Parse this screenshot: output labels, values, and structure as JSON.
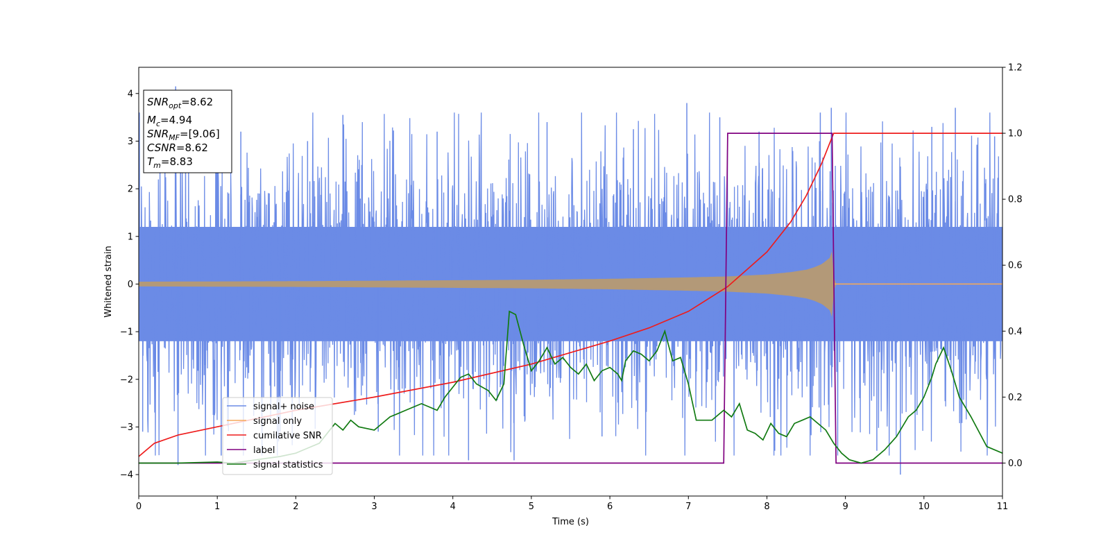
{
  "chart_data": {
    "type": "line",
    "title": "",
    "xlabel": "Time (s)",
    "ylabel": "Whitened strain",
    "xlim": [
      0,
      11
    ],
    "ylim": [
      -4.45,
      4.55
    ],
    "y2lim": [
      -0.1,
      1.2
    ],
    "xticks": [
      "0",
      "1",
      "2",
      "3",
      "4",
      "5",
      "6",
      "7",
      "8",
      "9",
      "10",
      "11"
    ],
    "yticks": [
      "4",
      "3",
      "2",
      "1",
      "0",
      "−1",
      "−2",
      "−3",
      "−4"
    ],
    "y2ticks": [
      "1.2",
      "1.0",
      "0.8",
      "0.6",
      "0.4",
      "0.2",
      "0.0"
    ],
    "grid": false,
    "legend_position": "lower-left",
    "info_box": {
      "snr_opt": {
        "name": "SNR",
        "sub": "opt",
        "value": "=8.62"
      },
      "mc": {
        "name": "M",
        "sub": "c",
        "value": "=4.94"
      },
      "snr_mf": {
        "name": "SNR",
        "sub": "MF",
        "value": "=[9.06]"
      },
      "csnr": {
        "name": "CSNR",
        "value": "=8.62"
      },
      "tm": {
        "name": "T",
        "sub": "m",
        "value": "=8.83"
      }
    },
    "series": [
      {
        "name": "signal+ noise",
        "color": "#6b8be6",
        "axis": "left",
        "envelope_x": [
          0,
          1,
          2,
          3,
          4,
          5,
          6,
          7,
          8,
          8.6,
          8.83,
          8.85,
          9,
          10,
          11
        ],
        "envelope_abs": [
          2.3,
          2.3,
          2.3,
          2.3,
          2.3,
          2.3,
          2.3,
          2.3,
          2.3,
          2.35,
          2.5,
          2.3,
          2.3,
          2.3,
          2.3
        ],
        "peak_x": [
          0.05,
          0.47,
          0.5,
          1.05,
          1.3,
          1.8,
          2.15,
          2.6,
          3.05,
          3.8,
          4.2,
          4.78,
          5.2,
          5.9,
          6.3,
          6.98,
          7.4,
          7.9,
          8.1,
          8.68,
          8.82,
          9.4,
          9.7,
          10.1,
          10.4,
          10.9
        ],
        "peak_y": [
          -3.1,
          4.15,
          -3.8,
          -3.6,
          3.2,
          -3.1,
          3.0,
          3.55,
          -3.1,
          3.2,
          -3.7,
          -3.7,
          3.4,
          -3.2,
          3.25,
          3.8,
          3.5,
          3.2,
          -3.5,
          3.6,
          3.7,
          -3.5,
          -4.0,
          3.3,
          3.7,
          3.1
        ]
      },
      {
        "name": "signal only",
        "color": "#f5a95b",
        "axis": "left",
        "envelope_x": [
          0,
          1,
          2,
          3,
          4,
          5,
          6,
          7,
          7.5,
          8,
          8.3,
          8.5,
          8.6,
          8.7,
          8.8,
          8.83,
          8.86,
          11
        ],
        "envelope_abs": [
          0.05,
          0.055,
          0.06,
          0.07,
          0.08,
          0.09,
          0.11,
          0.14,
          0.16,
          0.2,
          0.25,
          0.3,
          0.35,
          0.42,
          0.55,
          0.7,
          0.01,
          0.01
        ]
      },
      {
        "name": "cumilative SNR",
        "color": "#ee1c1c",
        "axis": "right",
        "x": [
          0,
          0.2,
          0.5,
          1,
          2,
          3,
          4,
          5,
          6,
          6.5,
          7,
          7.5,
          8,
          8.3,
          8.5,
          8.6,
          8.7,
          8.8,
          8.85,
          9,
          10,
          11
        ],
        "y": [
          0.02,
          0.06,
          0.085,
          0.11,
          0.16,
          0.2,
          0.245,
          0.3,
          0.37,
          0.41,
          0.46,
          0.535,
          0.64,
          0.73,
          0.81,
          0.86,
          0.91,
          0.97,
          1.0,
          1.0,
          1.0,
          1.0
        ]
      },
      {
        "name": "label",
        "color": "#800080",
        "axis": "right",
        "x": [
          0,
          7.45,
          7.5,
          8.83,
          8.88,
          11
        ],
        "y": [
          0,
          0,
          1,
          1,
          0,
          0
        ]
      },
      {
        "name": "signal statistics",
        "color": "#117a11",
        "axis": "right",
        "x": [
          0,
          0.5,
          1,
          1.2,
          1.5,
          1.8,
          2,
          2.1,
          2.3,
          2.4,
          2.5,
          2.6,
          2.7,
          2.8,
          3.0,
          3.1,
          3.2,
          3.3,
          3.4,
          3.5,
          3.6,
          3.7,
          3.8,
          3.9,
          4.0,
          4.1,
          4.2,
          4.3,
          4.45,
          4.55,
          4.65,
          4.72,
          4.8,
          4.9,
          5.0,
          5.1,
          5.15,
          5.2,
          5.3,
          5.4,
          5.5,
          5.6,
          5.7,
          5.8,
          5.9,
          6.0,
          6.1,
          6.15,
          6.2,
          6.3,
          6.4,
          6.5,
          6.6,
          6.7,
          6.8,
          6.9,
          7.0,
          7.1,
          7.3,
          7.45,
          7.55,
          7.65,
          7.75,
          7.85,
          7.95,
          8.05,
          8.15,
          8.25,
          8.35,
          8.45,
          8.55,
          8.65,
          8.75,
          8.85,
          8.95,
          9.05,
          9.2,
          9.35,
          9.5,
          9.65,
          9.8,
          9.9,
          10.0,
          10.1,
          10.15,
          10.25,
          10.35,
          10.45,
          10.6,
          10.8,
          11.0
        ],
        "y": [
          0.0,
          0.0,
          0.003,
          0.0,
          0.01,
          0.02,
          0.03,
          0.04,
          0.06,
          0.09,
          0.12,
          0.1,
          0.13,
          0.11,
          0.1,
          0.12,
          0.14,
          0.15,
          0.16,
          0.17,
          0.18,
          0.17,
          0.16,
          0.2,
          0.23,
          0.26,
          0.27,
          0.24,
          0.22,
          0.19,
          0.24,
          0.46,
          0.45,
          0.36,
          0.28,
          0.31,
          0.33,
          0.35,
          0.3,
          0.32,
          0.29,
          0.27,
          0.3,
          0.25,
          0.28,
          0.29,
          0.27,
          0.25,
          0.31,
          0.34,
          0.33,
          0.31,
          0.34,
          0.4,
          0.31,
          0.32,
          0.24,
          0.13,
          0.13,
          0.16,
          0.14,
          0.18,
          0.1,
          0.09,
          0.07,
          0.12,
          0.09,
          0.08,
          0.12,
          0.13,
          0.14,
          0.12,
          0.1,
          0.06,
          0.03,
          0.01,
          0.0,
          0.01,
          0.04,
          0.08,
          0.14,
          0.16,
          0.2,
          0.26,
          0.3,
          0.35,
          0.28,
          0.2,
          0.14,
          0.05,
          0.03
        ]
      }
    ]
  }
}
